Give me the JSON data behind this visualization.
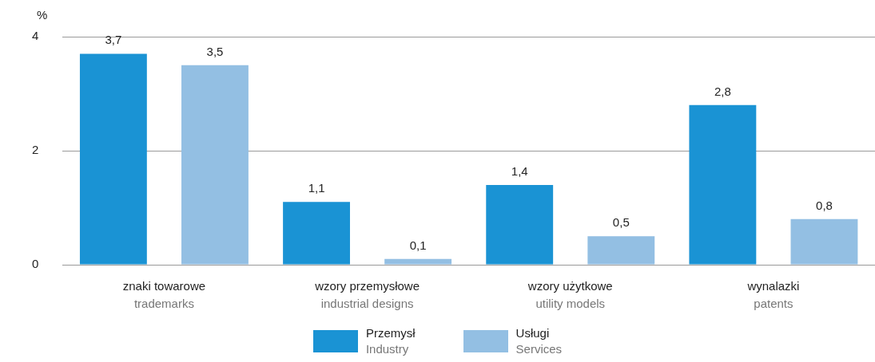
{
  "chart_data": {
    "type": "bar",
    "ylabel": "%",
    "categories": [
      "znaki towarowe\ntrademarks",
      "wzory przemysłowe\nindustrial designs",
      "wzory użytkowe\nutility models",
      "wynalazki\npatents"
    ],
    "series": [
      {
        "name": "Przemysł\nIndustry",
        "color": "#1a93d4",
        "values": [
          3.7,
          1.1,
          1.4,
          2.8
        ],
        "value_labels": [
          "3,7",
          "1,1",
          "1,4",
          "2,8"
        ]
      },
      {
        "name": "Usługi\nServices",
        "color": "#93bfe3",
        "values": [
          3.5,
          0.1,
          0.5,
          0.8
        ],
        "value_labels": [
          "3,5",
          "0,1",
          "0,5",
          "0,8"
        ]
      }
    ],
    "ylim": [
      0,
      4
    ],
    "yticks": [
      0,
      2,
      4
    ],
    "grid": "y",
    "legend": "bottom"
  }
}
